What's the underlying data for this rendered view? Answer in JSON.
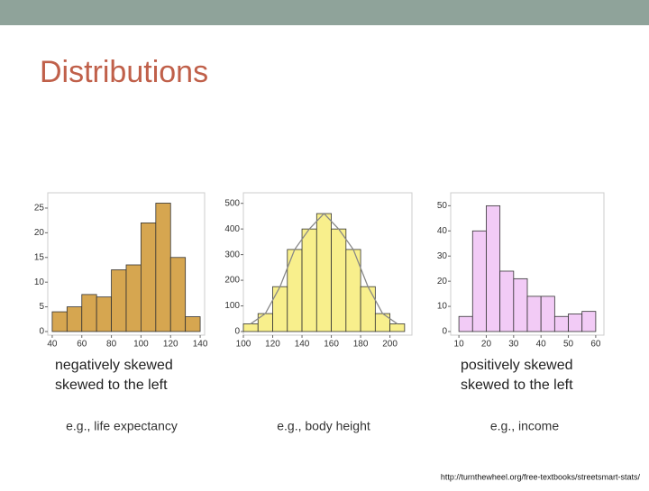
{
  "title": "Distributions",
  "chart_data": [
    {
      "type": "histogram",
      "bins": [
        40,
        50,
        60,
        70,
        80,
        90,
        100,
        110,
        120,
        130,
        140
      ],
      "values": [
        4,
        5,
        7.5,
        7,
        12.5,
        13.5,
        22,
        26,
        15,
        3
      ],
      "color": "#d6a650",
      "xlim": [
        37,
        143
      ],
      "xticks": [
        40,
        60,
        80,
        100,
        120,
        140
      ],
      "ylim": [
        0,
        27
      ],
      "yticks": [
        0,
        5,
        10,
        15,
        20,
        25
      ]
    },
    {
      "type": "histogram",
      "bins": [
        100,
        110,
        120,
        130,
        140,
        150,
        160,
        170,
        180,
        190,
        200,
        210
      ],
      "values": [
        30,
        70,
        175,
        320,
        400,
        460,
        400,
        320,
        175,
        70,
        30
      ],
      "color": "#f8ef8c",
      "xlim": [
        100,
        215
      ],
      "xticks": [
        100,
        120,
        140,
        160,
        180,
        200
      ],
      "ylim": [
        0,
        520
      ],
      "yticks": [
        0,
        100,
        200,
        300,
        400,
        500
      ],
      "curve": true
    },
    {
      "type": "histogram",
      "bins": [
        10,
        15,
        20,
        25,
        30,
        35,
        40,
        45,
        50,
        55,
        60
      ],
      "values": [
        6,
        40,
        50,
        24,
        21,
        14,
        14,
        6,
        7,
        8
      ],
      "color": "#f2cbf6",
      "xlim": [
        7,
        63
      ],
      "xticks": [
        10,
        20,
        30,
        40,
        50,
        60
      ],
      "ylim": [
        0,
        53
      ],
      "yticks": [
        0,
        10,
        20,
        30,
        40,
        50
      ]
    }
  ],
  "captions": [
    [
      "negatively skewed",
      "skewed to the left"
    ],
    [
      "positively skewed",
      "skewed to the left"
    ]
  ],
  "examples": [
    "e.g., life expectancy",
    "e.g., body height",
    "e.g., income"
  ],
  "source": "http://turnthewheel.org/free-textbooks/streetsmart-stats/"
}
